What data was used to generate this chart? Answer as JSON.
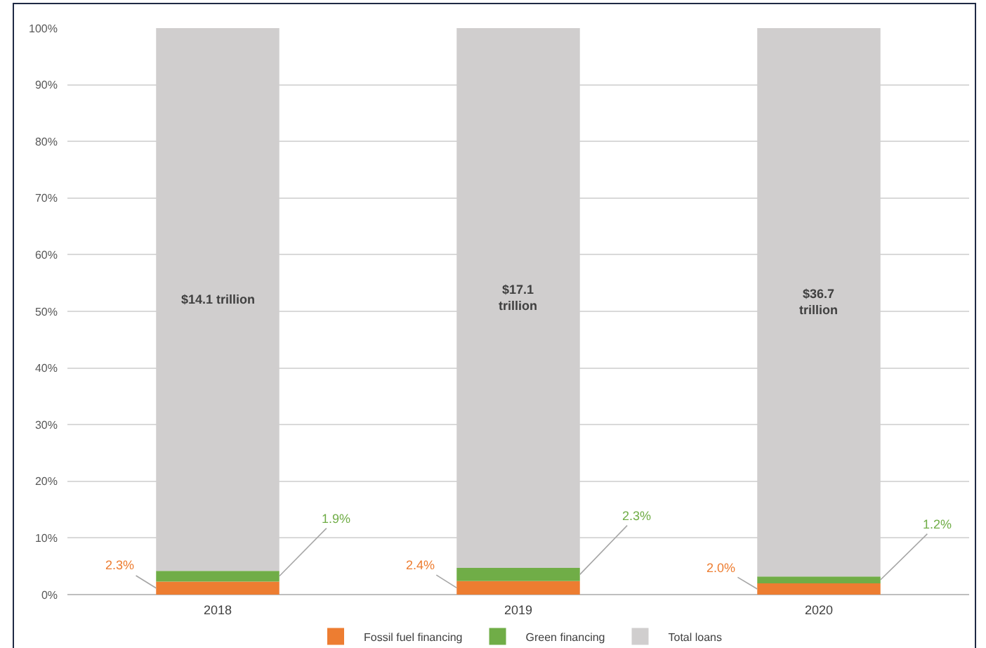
{
  "chart_data": {
    "type": "bar",
    "stacked": true,
    "categories": [
      "2018",
      "2019",
      "2020"
    ],
    "series": [
      {
        "name": "Fossil fuel financing",
        "color": "#ed7d31",
        "values": [
          2.3,
          2.4,
          2.0
        ],
        "value_labels": [
          "2.3%",
          "2.4%",
          "2.0%"
        ]
      },
      {
        "name": "Green financing",
        "color": "#70ad47",
        "values": [
          1.9,
          2.3,
          1.2
        ],
        "value_labels": [
          "1.9%",
          "2.3%",
          "1.2%"
        ]
      },
      {
        "name": "Total loans",
        "color": "#d0cece",
        "values": [
          95.8,
          95.3,
          96.8
        ]
      }
    ],
    "annotations": [
      "$14.1 trillion",
      "$17.1\ntrillion",
      "$36.7\ntrillion"
    ],
    "ylim": [
      0,
      100
    ],
    "yticks": [
      {
        "value": 0,
        "label": "0%"
      },
      {
        "value": 10,
        "label": "10%"
      },
      {
        "value": 20,
        "label": "20%"
      },
      {
        "value": 30,
        "label": "30%"
      },
      {
        "value": 40,
        "label": "40%"
      },
      {
        "value": 50,
        "label": "50%"
      },
      {
        "value": 60,
        "label": "60%"
      },
      {
        "value": 70,
        "label": "70%"
      },
      {
        "value": 80,
        "label": "80%"
      },
      {
        "value": 90,
        "label": "90%"
      },
      {
        "value": 100,
        "label": "100%"
      }
    ],
    "grid": "y",
    "legend": "bottom"
  }
}
